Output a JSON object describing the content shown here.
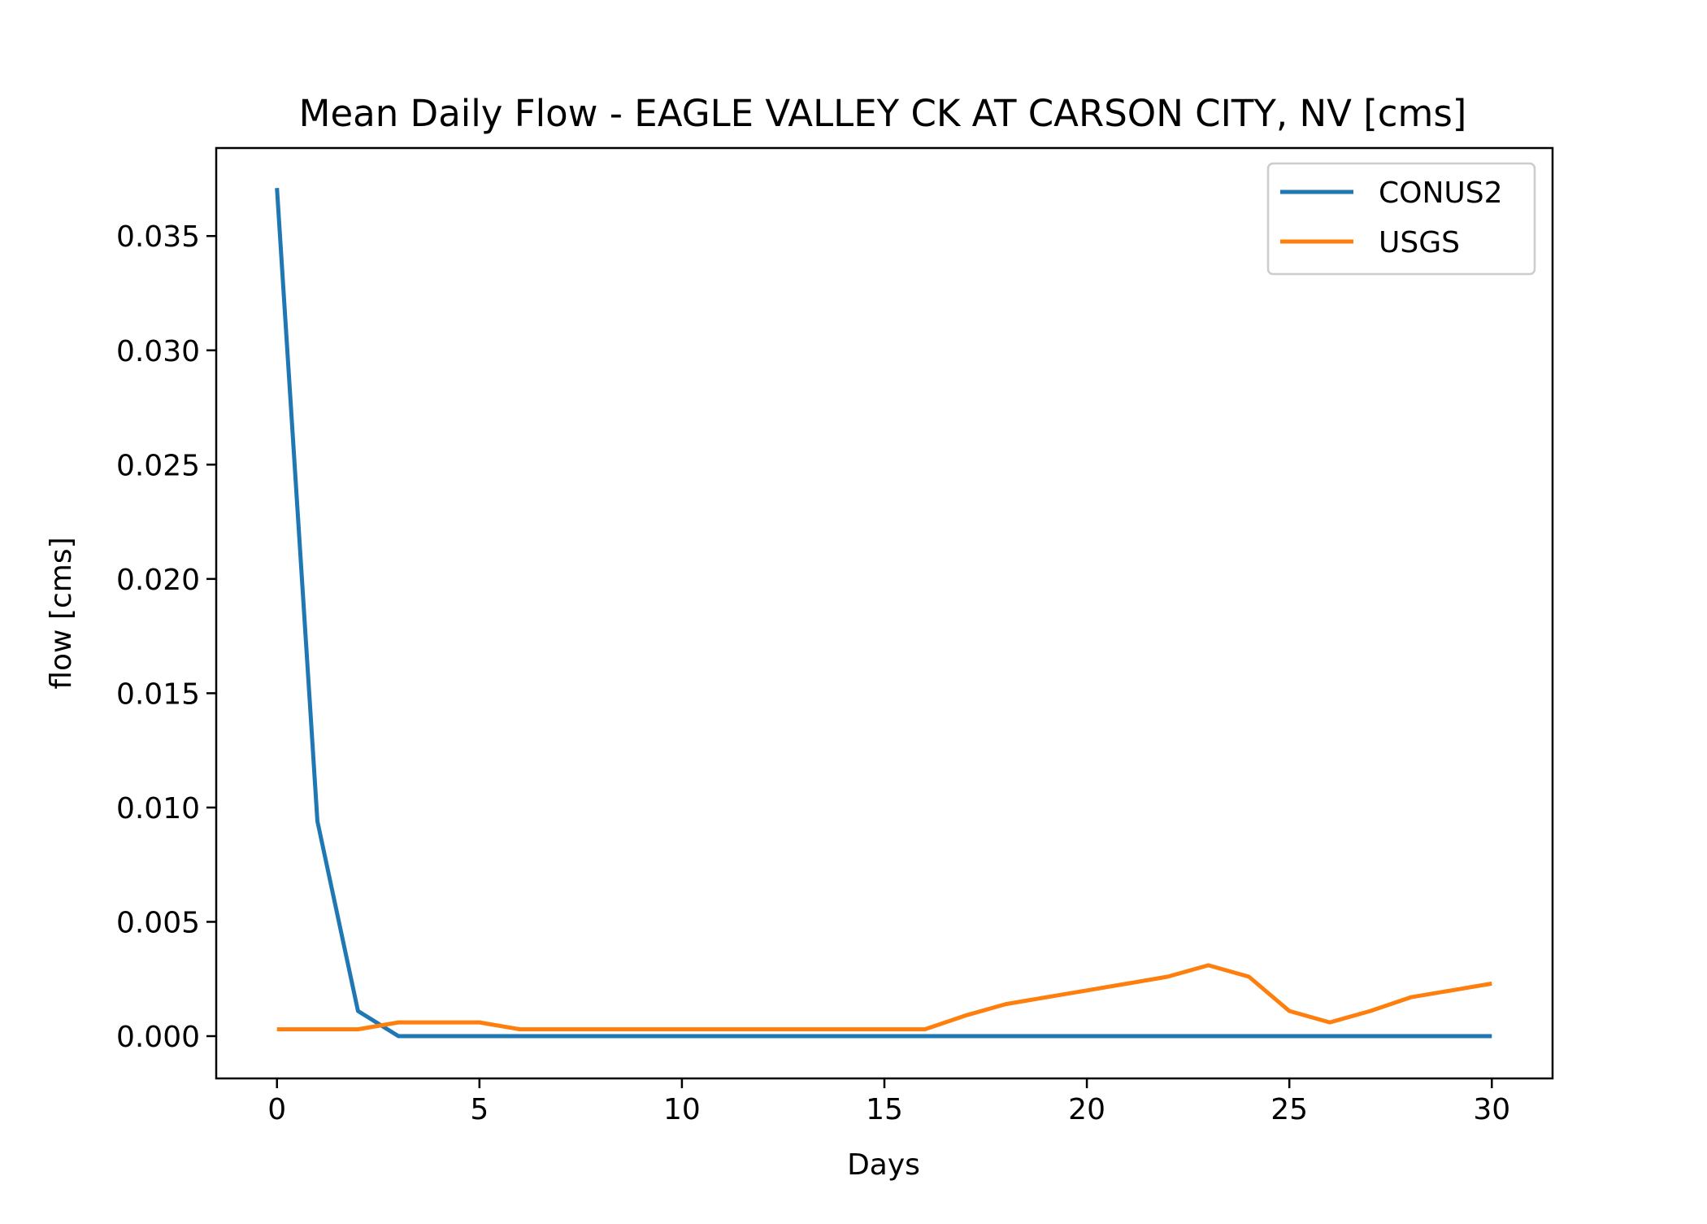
{
  "chart_data": {
    "type": "line",
    "title": "Mean Daily Flow - EAGLE VALLEY CK AT CARSON CITY, NV [cms]",
    "xlabel": "Days",
    "ylabel": "flow [cms]",
    "xlim": [
      -1.5,
      31.5
    ],
    "ylim": [
      -0.00185,
      0.03885
    ],
    "xticks": [
      0,
      5,
      10,
      15,
      20,
      25,
      30
    ],
    "xtick_labels": [
      "0",
      "5",
      "10",
      "15",
      "20",
      "25",
      "30"
    ],
    "yticks": [
      0.0,
      0.005,
      0.01,
      0.015,
      0.02,
      0.025,
      0.03,
      0.035
    ],
    "ytick_labels": [
      "0.000",
      "0.005",
      "0.010",
      "0.015",
      "0.020",
      "0.025",
      "0.030",
      "0.035"
    ],
    "grid": false,
    "legend_position": "upper right",
    "x": [
      0,
      1,
      2,
      3,
      4,
      5,
      6,
      7,
      8,
      9,
      10,
      11,
      12,
      13,
      14,
      15,
      16,
      17,
      18,
      19,
      20,
      21,
      22,
      23,
      24,
      25,
      26,
      27,
      28,
      29,
      30
    ],
    "series": [
      {
        "name": "CONUS2",
        "color": "#1f77b4",
        "values": [
          0.0371,
          0.0094,
          0.0011,
          0.0,
          0.0,
          0.0,
          0.0,
          0.0,
          0.0,
          0.0,
          0.0,
          0.0,
          0.0,
          0.0,
          0.0,
          0.0,
          0.0,
          0.0,
          0.0,
          0.0,
          0.0,
          0.0,
          0.0,
          0.0,
          0.0,
          0.0,
          0.0,
          0.0,
          0.0,
          0.0,
          0.0
        ]
      },
      {
        "name": "USGS",
        "color": "#ff7f0e",
        "values": [
          0.0003,
          0.0003,
          0.0003,
          0.0006,
          0.0006,
          0.0006,
          0.0003,
          0.0003,
          0.0003,
          0.0003,
          0.0003,
          0.0003,
          0.0003,
          0.0003,
          0.0003,
          0.0003,
          0.0003,
          0.0009,
          0.0014,
          0.0017,
          0.002,
          0.0023,
          0.0026,
          0.0031,
          0.0026,
          0.0011,
          0.0006,
          0.0011,
          0.0017,
          0.002,
          0.0023
        ]
      }
    ]
  }
}
